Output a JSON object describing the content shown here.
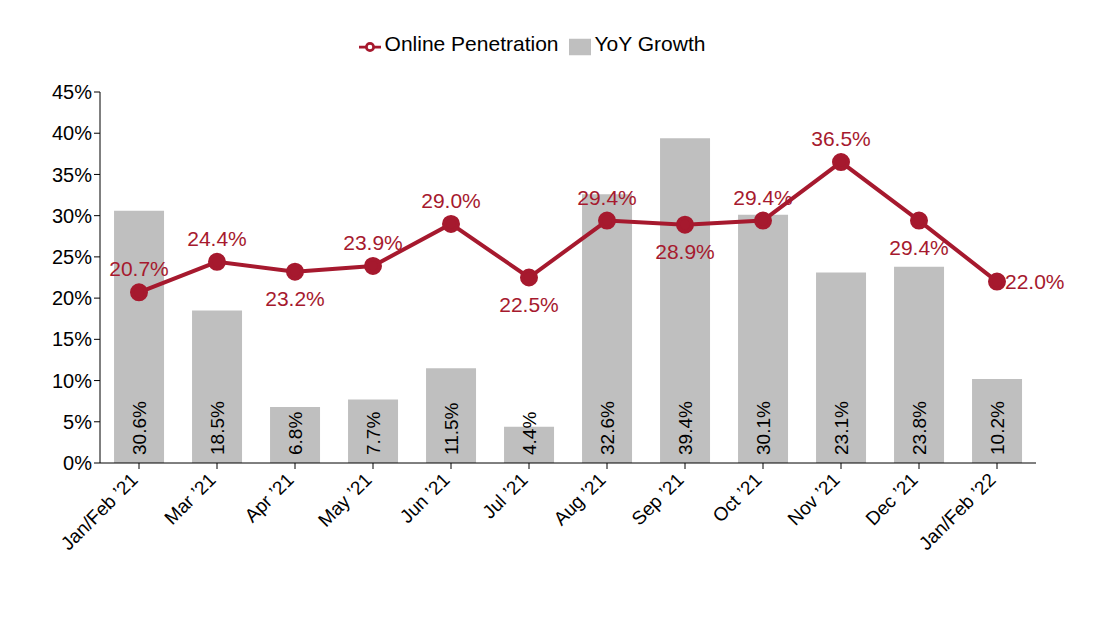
{
  "chart_data": {
    "type": "bar",
    "categories": [
      "Jan/Feb ’21",
      "Mar ’21",
      "Apr ’21",
      "May ’21",
      "Jun ’21",
      "Jul ’21",
      "Aug ’21",
      "Sep ’21",
      "Oct ’21",
      "Nov ’21",
      "Dec ’21",
      "Jan/Feb ’22"
    ],
    "series": [
      {
        "name": "YoY Growth",
        "type": "bar",
        "color": "#bfbfbf",
        "values": [
          30.6,
          18.5,
          6.8,
          7.7,
          11.5,
          4.4,
          32.6,
          39.4,
          30.1,
          23.1,
          23.8,
          10.2
        ],
        "value_labels": [
          "30.6%",
          "18.5%",
          "6.8%",
          "7.7%",
          "11.5%",
          "4.4%",
          "32.6%",
          "39.4%",
          "30.1%",
          "23.1%",
          "23.8%",
          "10.2%"
        ]
      },
      {
        "name": "Online Penetration",
        "type": "line",
        "color": "#a6192e",
        "marker": "circle",
        "values": [
          20.7,
          24.4,
          23.2,
          23.9,
          29.0,
          22.5,
          29.4,
          28.9,
          29.4,
          36.5,
          29.4,
          22.0
        ],
        "value_labels": [
          "20.7%",
          "24.4%",
          "23.2%",
          "23.9%",
          "29.0%",
          "22.5%",
          "29.4%",
          "28.9%",
          "29.4%",
          "36.5%",
          "29.4%",
          "22.0%"
        ]
      }
    ],
    "ylim": [
      0,
      45
    ],
    "yticks": [
      {
        "value": 0,
        "label": "0%"
      },
      {
        "value": 5,
        "label": "5%"
      },
      {
        "value": 10,
        "label": "10%"
      },
      {
        "value": 15,
        "label": "15%"
      },
      {
        "value": 20,
        "label": "20%"
      },
      {
        "value": 25,
        "label": "25%"
      },
      {
        "value": 30,
        "label": "30%"
      },
      {
        "value": 35,
        "label": "35%"
      },
      {
        "value": 40,
        "label": "40%"
      },
      {
        "value": 45,
        "label": "45%"
      }
    ],
    "grid": false,
    "legend": "top",
    "data_labels": true
  }
}
